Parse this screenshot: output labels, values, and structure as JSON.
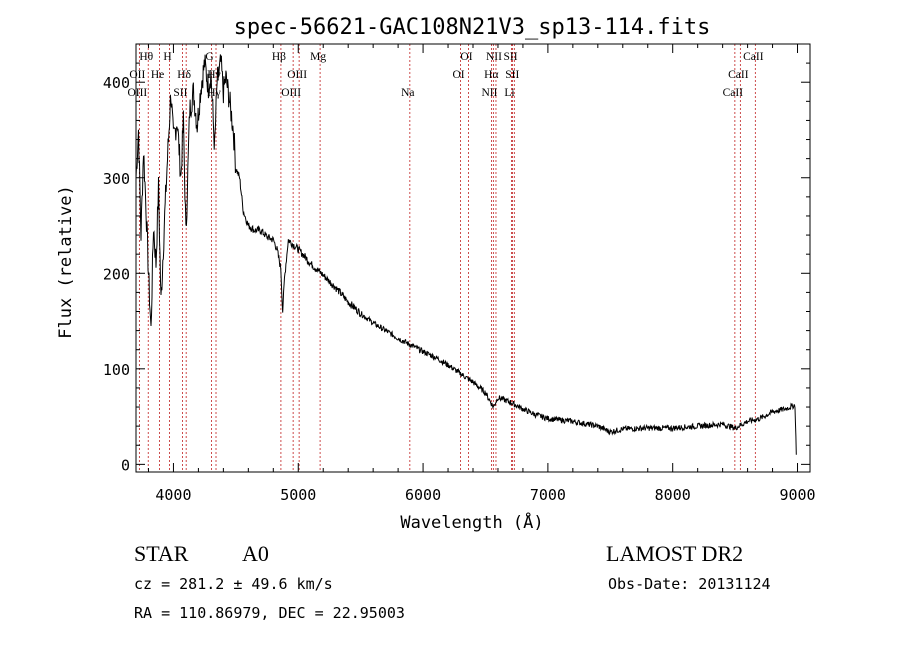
{
  "chart_data": {
    "type": "line",
    "title": "spec-56621-GAC108N21V3_sp13-114.fits",
    "xlabel": "Wavelength (Å)",
    "ylabel": "Flux (relative)",
    "xlim": [
      3700,
      9100
    ],
    "ylim": [
      -8,
      440
    ],
    "xticks": [
      4000,
      5000,
      6000,
      7000,
      8000,
      9000
    ],
    "yticks": [
      0,
      100,
      200,
      300,
      400
    ],
    "grid": false,
    "legend": "none",
    "series": [
      {
        "points": [
          [
            3700,
            300
          ],
          [
            3720,
            350
          ],
          [
            3740,
            240
          ],
          [
            3760,
            330
          ],
          [
            3780,
            270
          ],
          [
            3800,
            200
          ],
          [
            3820,
            140
          ],
          [
            3840,
            250
          ],
          [
            3860,
            210
          ],
          [
            3880,
            290
          ],
          [
            3900,
            170
          ],
          [
            3930,
            260
          ],
          [
            3960,
            340
          ],
          [
            3980,
            390
          ],
          [
            4000,
            340
          ],
          [
            4030,
            360
          ],
          [
            4060,
            300
          ],
          [
            4080,
            360
          ],
          [
            4100,
            240
          ],
          [
            4130,
            370
          ],
          [
            4160,
            390
          ],
          [
            4190,
            355
          ],
          [
            4220,
            395
          ],
          [
            4250,
            420
          ],
          [
            4280,
            395
          ],
          [
            4300,
            410
          ],
          [
            4330,
            330
          ],
          [
            4350,
            400
          ],
          [
            4380,
            420
          ],
          [
            4400,
            390
          ],
          [
            4420,
            405
          ],
          [
            4450,
            380
          ],
          [
            4480,
            350
          ],
          [
            4500,
            310
          ],
          [
            4530,
            300
          ],
          [
            4560,
            265
          ],
          [
            4600,
            250
          ],
          [
            4650,
            245
          ],
          [
            4700,
            245
          ],
          [
            4750,
            238
          ],
          [
            4800,
            235
          ],
          [
            4830,
            225
          ],
          [
            4860,
            205
          ],
          [
            4875,
            160
          ],
          [
            4890,
            195
          ],
          [
            4920,
            235
          ],
          [
            4960,
            230
          ],
          [
            5000,
            225
          ],
          [
            5050,
            218
          ],
          [
            5100,
            210
          ],
          [
            5200,
            198
          ],
          [
            5300,
            185
          ],
          [
            5400,
            170
          ],
          [
            5500,
            158
          ],
          [
            5600,
            148
          ],
          [
            5700,
            140
          ],
          [
            5800,
            132
          ],
          [
            5900,
            125
          ],
          [
            6000,
            118
          ],
          [
            6100,
            112
          ],
          [
            6200,
            104
          ],
          [
            6300,
            95
          ],
          [
            6400,
            86
          ],
          [
            6500,
            75
          ],
          [
            6563,
            60
          ],
          [
            6600,
            70
          ],
          [
            6700,
            65
          ],
          [
            6800,
            58
          ],
          [
            6900,
            52
          ],
          [
            7000,
            48
          ],
          [
            7200,
            45
          ],
          [
            7400,
            40
          ],
          [
            7500,
            34
          ],
          [
            7600,
            37
          ],
          [
            7800,
            38
          ],
          [
            8000,
            38
          ],
          [
            8200,
            40
          ],
          [
            8400,
            42
          ],
          [
            8500,
            38
          ],
          [
            8600,
            45
          ],
          [
            8700,
            48
          ],
          [
            8800,
            55
          ],
          [
            8900,
            58
          ],
          [
            8980,
            62
          ],
          [
            8990,
            10
          ]
        ]
      }
    ],
    "lines": [
      {
        "name": "Hθ",
        "wavelength": 3798,
        "row": 0
      },
      {
        "name": "OII",
        "wavelength": 3727,
        "row": 1
      },
      {
        "name": "OIII",
        "wavelength": 3727,
        "row": 2
      },
      {
        "name": "H",
        "wavelength": 3969,
        "row": 0
      },
      {
        "name": "He",
        "wavelength": 3889,
        "row": 1
      },
      {
        "name": "SII",
        "wavelength": 4072,
        "row": 2
      },
      {
        "name": "Hδ",
        "wavelength": 4102,
        "row": 1
      },
      {
        "name": "G",
        "wavelength": 4305,
        "row": 0
      },
      {
        "name": "Hγ",
        "wavelength": 4341,
        "row": 1
      },
      {
        "name": "Hγ",
        "wavelength": 4341,
        "row": 2
      },
      {
        "name": "Hβ",
        "wavelength": 4861,
        "row": 0
      },
      {
        "name": "OIII",
        "wavelength": 5007,
        "row": 1
      },
      {
        "name": "OIII",
        "wavelength": 4959,
        "row": 2
      },
      {
        "name": "Mg",
        "wavelength": 5175,
        "row": 0
      },
      {
        "name": "Na",
        "wavelength": 5894,
        "row": 2
      },
      {
        "name": "OI",
        "wavelength": 6364,
        "row": 0
      },
      {
        "name": "OI",
        "wavelength": 6300,
        "row": 1
      },
      {
        "name": "NII",
        "wavelength": 6584,
        "row": 0
      },
      {
        "name": "SII",
        "wavelength": 6717,
        "row": 0
      },
      {
        "name": "Hα",
        "wavelength": 6563,
        "row": 1
      },
      {
        "name": "SII",
        "wavelength": 6731,
        "row": 1
      },
      {
        "name": "NII",
        "wavelength": 6548,
        "row": 2
      },
      {
        "name": "Li",
        "wavelength": 6708,
        "row": 2
      },
      {
        "name": "CaII",
        "wavelength": 8662,
        "row": 0
      },
      {
        "name": "CaII",
        "wavelength": 8542,
        "row": 1
      },
      {
        "name": "CaII",
        "wavelength": 8498,
        "row": 2
      }
    ]
  },
  "info": {
    "class_label": "STAR",
    "subclass": "A0",
    "survey": "LAMOST DR2",
    "cz": "cz = 281.2 ± 49.6 km/s",
    "obs_date": "Obs-Date: 20131124",
    "coords": "RA = 110.86979, DEC =  22.95003"
  }
}
